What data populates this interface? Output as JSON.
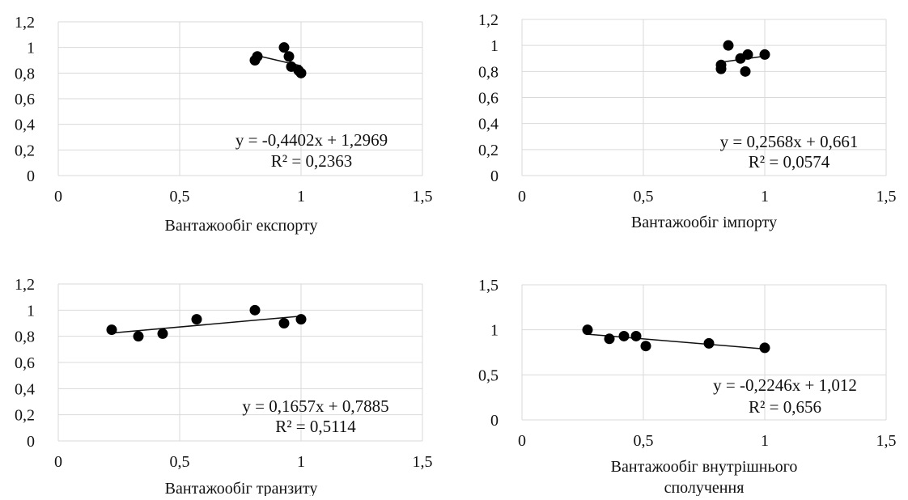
{
  "chart_data": [
    {
      "type": "scatter",
      "xlabel": "Вантажообіг експорту",
      "ylabel": "",
      "xlim": [
        0,
        1.5
      ],
      "ylim": [
        0,
        1.2
      ],
      "x_ticks": [
        0,
        0.5,
        1,
        1.5
      ],
      "x_tick_labels": [
        "0",
        "0,5",
        "1",
        "1,5"
      ],
      "y_ticks": [
        0,
        0.2,
        0.4,
        0.6,
        0.8,
        1,
        1.2
      ],
      "y_tick_labels": [
        "0",
        "0,2",
        "0,4",
        "0,6",
        "0,8",
        "1",
        "1,2"
      ],
      "grid": true,
      "points": [
        [
          0.81,
          0.9
        ],
        [
          0.82,
          0.93
        ],
        [
          0.93,
          1.0
        ],
        [
          0.95,
          0.93
        ],
        [
          0.96,
          0.85
        ],
        [
          0.99,
          0.82
        ],
        [
          1.0,
          0.8
        ]
      ],
      "trendline": {
        "slope": -0.4402,
        "intercept": 1.2969,
        "x_range": [
          0.8,
          1.0
        ]
      },
      "equation": "y = -0,4402x + 1,2969",
      "r_squared": "R² = 0,2363"
    },
    {
      "type": "scatter",
      "xlabel": "Вантажообіг імпорту",
      "ylabel": "",
      "xlim": [
        0,
        1.5
      ],
      "ylim": [
        0,
        1.2
      ],
      "x_ticks": [
        0,
        0.5,
        1,
        1.5
      ],
      "x_tick_labels": [
        "0",
        "0,5",
        "1",
        "1,5"
      ],
      "y_ticks": [
        0,
        0.2,
        0.4,
        0.6,
        0.8,
        1,
        1.2
      ],
      "y_tick_labels": [
        "0",
        "0,2",
        "0,4",
        "0,6",
        "0,8",
        "1",
        "1,2"
      ],
      "grid": true,
      "points": [
        [
          0.82,
          0.82
        ],
        [
          0.82,
          0.85
        ],
        [
          0.85,
          1.0
        ],
        [
          0.9,
          0.9
        ],
        [
          0.92,
          0.8
        ],
        [
          0.93,
          0.93
        ],
        [
          1.0,
          0.93
        ]
      ],
      "trendline": {
        "slope": 0.2568,
        "intercept": 0.661,
        "x_range": [
          0.82,
          1.0
        ]
      },
      "equation": "y = 0,2568x + 0,661",
      "r_squared": "R² = 0,0574"
    },
    {
      "type": "scatter",
      "xlabel": "Вантажообіг транзиту",
      "ylabel": "",
      "xlim": [
        0,
        1.5
      ],
      "ylim": [
        0,
        1.2
      ],
      "x_ticks": [
        0,
        0.5,
        1,
        1.5
      ],
      "x_tick_labels": [
        "0",
        "0,5",
        "1",
        "1,5"
      ],
      "y_ticks": [
        0,
        0.2,
        0.4,
        0.6,
        0.8,
        1,
        1.2
      ],
      "y_tick_labels": [
        "0",
        "0,2",
        "0,4",
        "0,6",
        "0,8",
        "1",
        "1,2"
      ],
      "grid": true,
      "points": [
        [
          0.22,
          0.85
        ],
        [
          0.33,
          0.8
        ],
        [
          0.43,
          0.82
        ],
        [
          0.57,
          0.93
        ],
        [
          0.81,
          1.0
        ],
        [
          0.93,
          0.9
        ],
        [
          1.0,
          0.93
        ]
      ],
      "trendline": {
        "slope": 0.1657,
        "intercept": 0.7885,
        "x_range": [
          0.22,
          1.0
        ]
      },
      "equation": "y = 0,1657x + 0,7885",
      "r_squared": "R² = 0,5114"
    },
    {
      "type": "scatter",
      "xlabel": "Вантажообіг внутрішнього сполучення",
      "xlabel_lines": [
        "Вантажообіг внутрішнього",
        "сполучення"
      ],
      "ylabel": "",
      "xlim": [
        0,
        1.5
      ],
      "ylim": [
        0,
        1.5
      ],
      "x_ticks": [
        0,
        0.5,
        1,
        1.5
      ],
      "x_tick_labels": [
        "0",
        "0,5",
        "1",
        "1,5"
      ],
      "y_ticks": [
        0,
        0.5,
        1,
        1.5
      ],
      "y_tick_labels": [
        "0",
        "0,5",
        "1",
        "1,5"
      ],
      "grid": true,
      "points": [
        [
          0.27,
          1.0
        ],
        [
          0.36,
          0.9
        ],
        [
          0.42,
          0.93
        ],
        [
          0.47,
          0.93
        ],
        [
          0.51,
          0.82
        ],
        [
          0.77,
          0.85
        ],
        [
          1.0,
          0.8
        ]
      ],
      "trendline": {
        "slope": -0.2246,
        "intercept": 1.012,
        "x_range": [
          0.27,
          1.0
        ]
      },
      "equation": "y = -0,2246x + 1,012",
      "r_squared": "R² = 0,656"
    }
  ]
}
